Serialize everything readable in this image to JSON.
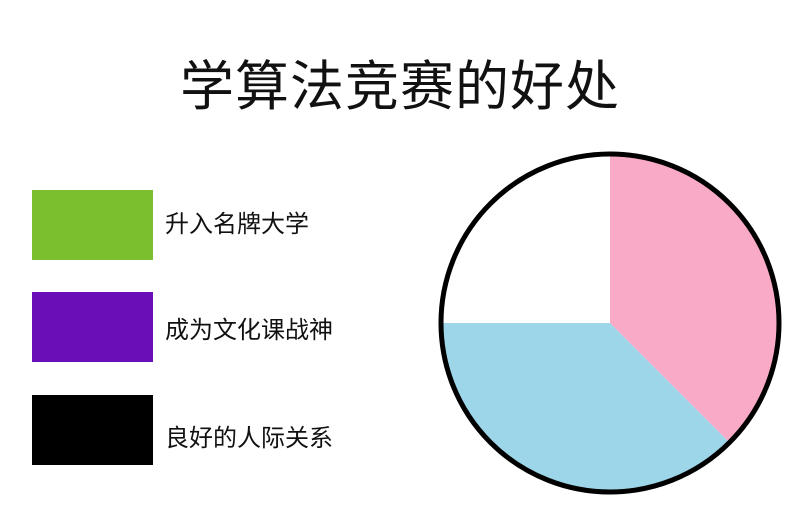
{
  "chart_data": {
    "type": "pie",
    "title": "学算法竞赛的好处",
    "legend": [
      {
        "label": "升入名牌大学",
        "color": "#7bbf2e"
      },
      {
        "label": "成为文化课战神",
        "color": "#6a0fb8"
      },
      {
        "label": "良好的人际关系",
        "color": "#000000"
      }
    ],
    "legend_placement": "left",
    "slices": [
      {
        "value": 37.5,
        "color": "#f9aac6"
      },
      {
        "value": 37.5,
        "color": "#9dd6e8"
      },
      {
        "value": 25,
        "color": "#ffffff"
      }
    ],
    "start_angle": "12 o'clock",
    "direction": "clockwise",
    "outline_color": "#000000"
  }
}
